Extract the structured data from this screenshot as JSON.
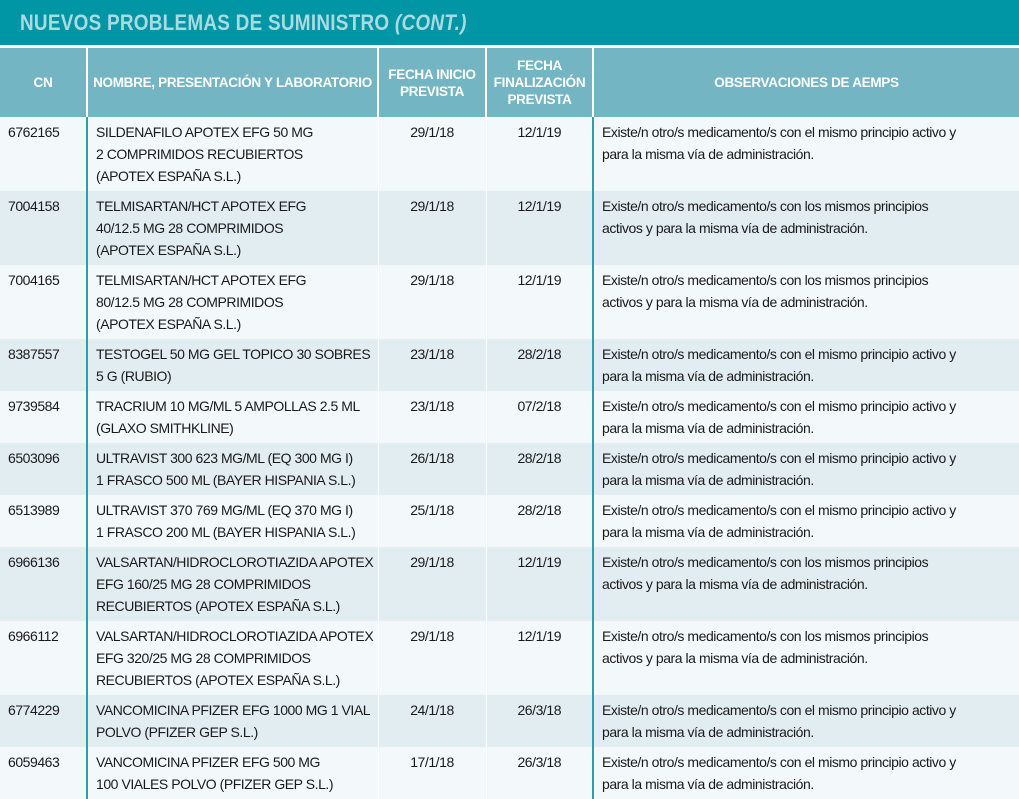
{
  "title": {
    "main": "NUEVOS PROBLEMAS DE SUMINISTRO",
    "suffix": "(CONT.)"
  },
  "colors": {
    "title_bg": "#0096a6",
    "header_bg": "#74b5c3",
    "row_odd": "#f3f8fa",
    "row_even": "#e2edf2"
  },
  "columns": [
    "CN",
    "NOMBRE, PRESENTACIÓN Y LABORATORIO",
    "FECHA INICIO PREVISTA",
    "FECHA FINALIZACIÓN PREVISTA",
    "OBSERVACIONES DE AEMPS"
  ],
  "rows": [
    {
      "cn": "6762165",
      "name": [
        "SILDENAFILO APOTEX EFG 50 MG",
        "2 COMPRIMIDOS RECUBIERTOS",
        "(APOTEX ESPAÑA S.L.)"
      ],
      "start": "29/1/18",
      "end": "12/1/19",
      "obs": [
        "Existe/n otro/s medicamento/s con el mismo principio activo y",
        "para la misma vía de administración."
      ]
    },
    {
      "cn": "7004158",
      "name": [
        "TELMISARTAN/HCT APOTEX EFG",
        "40/12.5 MG 28 COMPRIMIDOS",
        "(APOTEX ESPAÑA S.L.)"
      ],
      "start": "29/1/18",
      "end": "12/1/19",
      "obs": [
        "Existe/n otro/s medicamento/s con los mismos principios",
        "activos y para la misma vía de administración."
      ]
    },
    {
      "cn": "7004165",
      "name": [
        "TELMISARTAN/HCT APOTEX EFG",
        "80/12.5 MG 28 COMPRIMIDOS",
        "(APOTEX ESPAÑA S.L.)"
      ],
      "start": "29/1/18",
      "end": "12/1/19",
      "obs": [
        "Existe/n otro/s medicamento/s con los mismos principios",
        "activos y para la misma vía de administración."
      ]
    },
    {
      "cn": "8387557",
      "name": [
        "TESTOGEL 50 MG GEL TOPICO 30 SOBRES",
        "5 G (RUBIO)"
      ],
      "start": "23/1/18",
      "end": "28/2/18",
      "obs": [
        "Existe/n otro/s medicamento/s con el mismo principio activo y",
        "para la misma vía de administración."
      ]
    },
    {
      "cn": "9739584",
      "name": [
        "TRACRIUM 10 MG/ML 5 AMPOLLAS 2.5 ML",
        "(GLAXO SMITHKLINE)"
      ],
      "start": "23/1/18",
      "end": "07/2/18",
      "obs": [
        "Existe/n otro/s medicamento/s con el mismo principio activo y",
        "para la misma vía de administración."
      ]
    },
    {
      "cn": "6503096",
      "name": [
        "ULTRAVIST 300 623 MG/ML (EQ 300 MG I)",
        "1 FRASCO 500 ML (BAYER HISPANIA S.L.)"
      ],
      "start": "26/1/18",
      "end": "28/2/18",
      "obs": [
        "Existe/n otro/s medicamento/s con el mismo principio activo y",
        "para la misma vía de administración."
      ]
    },
    {
      "cn": "6513989",
      "name": [
        "ULTRAVIST 370 769 MG/ML (EQ 370 MG I)",
        "1 FRASCO 200 ML (BAYER HISPANIA S.L.)"
      ],
      "start": "25/1/18",
      "end": "28/2/18",
      "obs": [
        "Existe/n otro/s medicamento/s con el mismo principio activo y",
        "para la misma vía de administración."
      ]
    },
    {
      "cn": "6966136",
      "name": [
        "VALSARTAN/HIDROCLOROTIAZIDA APOTEX",
        "EFG 160/25 MG 28 COMPRIMIDOS",
        "RECUBIERTOS (APOTEX ESPAÑA S.L.)"
      ],
      "start": "29/1/18",
      "end": "12/1/19",
      "obs": [
        "Existe/n otro/s medicamento/s con los mismos principios",
        "activos y para la misma vía de administración."
      ]
    },
    {
      "cn": "6966112",
      "name": [
        "VALSARTAN/HIDROCLOROTIAZIDA APOTEX",
        "EFG 320/25 MG 28 COMPRIMIDOS",
        "RECUBIERTOS (APOTEX ESPAÑA S.L.)"
      ],
      "start": "29/1/18",
      "end": "12/1/19",
      "obs": [
        "Existe/n otro/s medicamento/s con los mismos principios",
        "activos y para la misma vía de administración."
      ]
    },
    {
      "cn": "6774229",
      "name": [
        "VANCOMICINA PFIZER EFG 1000 MG 1 VIAL",
        "POLVO (PFIZER GEP S.L.)"
      ],
      "start": "24/1/18",
      "end": "26/3/18",
      "obs": [
        "Existe/n otro/s medicamento/s con el mismo principio activo y",
        "para la misma vía de administración."
      ]
    },
    {
      "cn": "6059463",
      "name": [
        "VANCOMICINA PFIZER EFG 500 MG",
        "100 VIALES POLVO (PFIZER GEP S.L.)"
      ],
      "start": "17/1/18",
      "end": "26/3/18",
      "obs": [
        "Existe/n otro/s medicamento/s con el mismo principio activo y",
        "para la misma vía de administración."
      ]
    }
  ]
}
